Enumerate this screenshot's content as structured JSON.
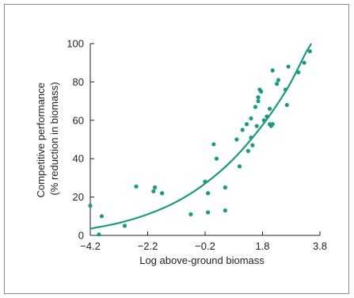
{
  "chart_data": {
    "type": "scatter",
    "xlabel": "Log above-ground biomass",
    "ylabel_line1": "Competitive performance",
    "ylabel_line2": "(% reduction in biomass)",
    "xlim": [
      -4.2,
      3.8
    ],
    "ylim": [
      0,
      100
    ],
    "x_ticks": [
      -4.2,
      -2.2,
      -0.2,
      1.8,
      3.8
    ],
    "x_tick_labels": [
      "−4.2",
      "−2.2",
      "−0.2",
      "1.8",
      "3.8"
    ],
    "y_ticks": [
      0,
      20,
      40,
      60,
      80,
      100
    ],
    "y_tick_labels": [
      "0",
      "20",
      "40",
      "60",
      "80",
      "100"
    ],
    "grid": false,
    "colors": {
      "marker": "#1a9a80",
      "curve": "#1a9a80",
      "axis": "#222222"
    },
    "points": [
      [
        -4.2,
        15.5
      ],
      [
        -3.9,
        0.5
      ],
      [
        -3.8,
        10
      ],
      [
        -3.0,
        5
      ],
      [
        -2.6,
        25.5
      ],
      [
        -2.0,
        23
      ],
      [
        -1.95,
        25
      ],
      [
        -1.7,
        22
      ],
      [
        -0.7,
        11
      ],
      [
        -0.2,
        28
      ],
      [
        -0.1,
        22
      ],
      [
        -0.1,
        12
      ],
      [
        0.1,
        47.5
      ],
      [
        0.2,
        40
      ],
      [
        0.5,
        25
      ],
      [
        0.5,
        13
      ],
      [
        0.9,
        50
      ],
      [
        1.0,
        36
      ],
      [
        1.1,
        55
      ],
      [
        1.25,
        58
      ],
      [
        1.3,
        44
      ],
      [
        1.4,
        61
      ],
      [
        1.4,
        51
      ],
      [
        1.45,
        47
      ],
      [
        1.55,
        67
      ],
      [
        1.6,
        57
      ],
      [
        1.65,
        70
      ],
      [
        1.65,
        72
      ],
      [
        1.7,
        76
      ],
      [
        1.75,
        75
      ],
      [
        1.85,
        60
      ],
      [
        1.95,
        62
      ],
      [
        2.05,
        66
      ],
      [
        2.05,
        58
      ],
      [
        2.1,
        57
      ],
      [
        2.15,
        86
      ],
      [
        2.15,
        58
      ],
      [
        2.3,
        79
      ],
      [
        2.35,
        81
      ],
      [
        2.6,
        76
      ],
      [
        2.65,
        68
      ],
      [
        2.7,
        88
      ],
      [
        3.05,
        85
      ],
      [
        3.25,
        90
      ],
      [
        3.45,
        96
      ]
    ],
    "fit": {
      "type": "exponential",
      "samples": [
        [
          -4.2,
          3.5
        ],
        [
          -3.2,
          6.5
        ],
        [
          -2.2,
          11
        ],
        [
          -1.2,
          17.5
        ],
        [
          -0.2,
          27
        ],
        [
          0.8,
          40
        ],
        [
          1.8,
          57.5
        ],
        [
          2.6,
          75
        ],
        [
          3.0,
          86
        ],
        [
          3.3,
          95
        ],
        [
          3.5,
          100
        ]
      ]
    }
  }
}
